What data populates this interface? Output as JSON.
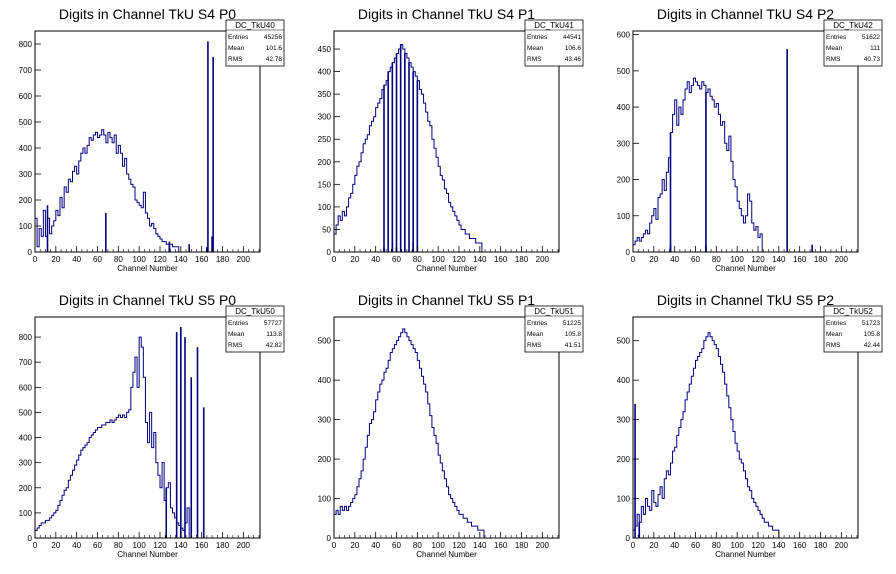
{
  "colors": {
    "histogram": "#000080",
    "frame": "#000000",
    "background": "#ffffff"
  },
  "chart_data": [
    {
      "type": "bar",
      "title": "Digits in Channel TkU S4 P0",
      "xlabel": "Channel Number",
      "ylabel": "",
      "xlim": [
        0,
        216
      ],
      "ylim": [
        0,
        850
      ],
      "xticks": [
        0,
        20,
        40,
        60,
        80,
        100,
        120,
        140,
        160,
        180,
        200
      ],
      "yticks": [
        100,
        200,
        300,
        400,
        500,
        600,
        700,
        800
      ],
      "stats": {
        "name": "DC_TkU40",
        "labels": [
          "Entries",
          "Mean",
          "RMS"
        ],
        "values": [
          "45256",
          "101.6",
          "42.78"
        ]
      },
      "bin_width": 2,
      "values": [
        130,
        20,
        90,
        60,
        160,
        60,
        130,
        70,
        100,
        120,
        160,
        140,
        210,
        170,
        250,
        230,
        280,
        270,
        310,
        330,
        300,
        350,
        380,
        400,
        380,
        410,
        440,
        430,
        450,
        460,
        440,
        450,
        470,
        450,
        420,
        460,
        440,
        420,
        450,
        380,
        410,
        380,
        330,
        360,
        300,
        280,
        260,
        250,
        200,
        190,
        180,
        170,
        230,
        150,
        130,
        100,
        110,
        90,
        70,
        60,
        50,
        40,
        40,
        30,
        30,
        30,
        20,
        20,
        20
      ],
      "spikes": [
        [
          12,
          180
        ],
        [
          68,
          150
        ],
        [
          129,
          40
        ],
        [
          148,
          30
        ],
        [
          166,
          810
        ],
        [
          171,
          750
        ],
        [
          165,
          20
        ],
        [
          170,
          60
        ]
      ]
    },
    {
      "type": "bar",
      "title": "Digits in Channel TkU S4 P1",
      "xlabel": "Channel Number",
      "ylabel": "",
      "xlim": [
        0,
        216
      ],
      "ylim": [
        0,
        490
      ],
      "xticks": [
        0,
        20,
        40,
        60,
        80,
        100,
        120,
        140,
        160,
        180,
        200
      ],
      "yticks": [
        50,
        100,
        150,
        200,
        250,
        300,
        350,
        400,
        450
      ],
      "stats": {
        "name": "DC_TkU41",
        "labels": [
          "Entries",
          "Mean",
          "RMS"
        ],
        "values": [
          "44541",
          "106.6",
          "43.46"
        ]
      },
      "bin_width": 2,
      "values": [
        40,
        60,
        80,
        70,
        90,
        80,
        100,
        120,
        130,
        150,
        170,
        190,
        200,
        220,
        240,
        250,
        260,
        280,
        290,
        300,
        320,
        330,
        340,
        360,
        370,
        380,
        400,
        410,
        420,
        430,
        440,
        450,
        460,
        450,
        440,
        430,
        420,
        410,
        400,
        390,
        380,
        360,
        350,
        330,
        310,
        290,
        280,
        250,
        230,
        210,
        190,
        170,
        160,
        140,
        130,
        110,
        100,
        90,
        80,
        70,
        60,
        50,
        50,
        40,
        40,
        30,
        30,
        30,
        20,
        20,
        20
      ],
      "spikes": [
        [
          48,
          10
        ],
        [
          52,
          0
        ],
        [
          56,
          20
        ],
        [
          60,
          10
        ],
        [
          64,
          0
        ],
        [
          68,
          10
        ],
        [
          72,
          0
        ],
        [
          76,
          20
        ],
        [
          80,
          10
        ]
      ]
    },
    {
      "type": "bar",
      "title": "Digits in Channel TkU S4 P2",
      "xlabel": "Channel Number",
      "ylabel": "",
      "xlim": [
        0,
        216
      ],
      "ylim": [
        0,
        610
      ],
      "xticks": [
        0,
        20,
        40,
        60,
        80,
        100,
        120,
        140,
        160,
        180,
        200
      ],
      "yticks": [
        100,
        200,
        300,
        400,
        500,
        600
      ],
      "stats": {
        "name": "DC_TkU42",
        "labels": [
          "Entries",
          "Mean",
          "RMS"
        ],
        "values": [
          "51622",
          "111",
          "40.73"
        ]
      },
      "bin_width": 2,
      "values": [
        20,
        30,
        40,
        30,
        40,
        50,
        60,
        50,
        80,
        100,
        120,
        90,
        150,
        160,
        200,
        170,
        220,
        260,
        330,
        380,
        420,
        350,
        400,
        380,
        420,
        450,
        470,
        440,
        460,
        480,
        470,
        460,
        450,
        470,
        460,
        440,
        450,
        430,
        420,
        400,
        410,
        380,
        350,
        360,
        300,
        280,
        320,
        250,
        200,
        180,
        140,
        120,
        100,
        80,
        100,
        160,
        140,
        80,
        60,
        70,
        40,
        50
      ],
      "spikes": [
        [
          36,
          20
        ],
        [
          70,
          20
        ],
        [
          148,
          560
        ],
        [
          172,
          20
        ],
        [
          178,
          0
        ],
        [
          180,
          0
        ],
        [
          186,
          0
        ]
      ]
    },
    {
      "type": "bar",
      "title": "Digits in Channel TkU S5 P0",
      "xlabel": "Channel Number",
      "ylabel": "",
      "xlim": [
        0,
        216
      ],
      "ylim": [
        0,
        880
      ],
      "xticks": [
        0,
        20,
        40,
        60,
        80,
        100,
        120,
        140,
        160,
        180,
        200
      ],
      "yticks": [
        100,
        200,
        300,
        400,
        500,
        600,
        700,
        800
      ],
      "stats": {
        "name": "DC_TkU50",
        "labels": [
          "Entries",
          "Mean",
          "RMS"
        ],
        "values": [
          "57727",
          "113.8",
          "42.82"
        ]
      },
      "bin_width": 2,
      "values": [
        30,
        40,
        50,
        60,
        60,
        70,
        70,
        80,
        90,
        100,
        110,
        130,
        150,
        170,
        190,
        200,
        230,
        250,
        270,
        290,
        310,
        330,
        350,
        360,
        370,
        380,
        400,
        410,
        420,
        430,
        440,
        440,
        450,
        450,
        460,
        460,
        470,
        460,
        470,
        480,
        490,
        480,
        490,
        480,
        500,
        510,
        600,
        660,
        720,
        600,
        800,
        760,
        640,
        460,
        380,
        500,
        360,
        420,
        300,
        250,
        200,
        300,
        150,
        200,
        220,
        120,
        100,
        80,
        60,
        50,
        40,
        30,
        60,
        120
      ],
      "spikes": [
        [
          126,
          0
        ],
        [
          136,
          820
        ],
        [
          140,
          840
        ],
        [
          144,
          800
        ],
        [
          150,
          640
        ],
        [
          156,
          760
        ],
        [
          162,
          520
        ]
      ]
    },
    {
      "type": "bar",
      "title": "Digits in Channel TkU S5 P1",
      "xlabel": "Channel Number",
      "ylabel": "",
      "xlim": [
        0,
        216
      ],
      "ylim": [
        0,
        560
      ],
      "xticks": [
        0,
        20,
        40,
        60,
        80,
        100,
        120,
        140,
        160,
        180,
        200
      ],
      "yticks": [
        100,
        200,
        300,
        400,
        500
      ],
      "stats": {
        "name": "DC_TkU51",
        "labels": [
          "Entries",
          "Mean",
          "RMS"
        ],
        "values": [
          "51225",
          "105.8",
          "41.51"
        ]
      },
      "bin_width": 2,
      "values": [
        60,
        70,
        60,
        80,
        70,
        80,
        70,
        80,
        90,
        100,
        110,
        130,
        150,
        170,
        200,
        230,
        260,
        290,
        300,
        320,
        350,
        370,
        390,
        400,
        420,
        430,
        450,
        470,
        480,
        490,
        500,
        510,
        520,
        530,
        520,
        510,
        500,
        490,
        480,
        470,
        450,
        430,
        410,
        390,
        370,
        340,
        310,
        280,
        260,
        240,
        210,
        190,
        170,
        150,
        130,
        110,
        100,
        90,
        80,
        70,
        60,
        60,
        50,
        50,
        40,
        40,
        30,
        30,
        30,
        20,
        20,
        20
      ],
      "spikes": []
    },
    {
      "type": "bar",
      "title": "Digits in Channel TkU S5 P2",
      "xlabel": "Channel Number",
      "ylabel": "",
      "xlim": [
        0,
        216
      ],
      "ylim": [
        0,
        560
      ],
      "xticks": [
        0,
        20,
        40,
        60,
        80,
        100,
        120,
        140,
        160,
        180,
        200
      ],
      "yticks": [
        100,
        200,
        300,
        400,
        500
      ],
      "stats": {
        "name": "DC_TkU52",
        "labels": [
          "Entries",
          "Mean",
          "RMS"
        ],
        "values": [
          "51723",
          "105.8",
          "42.44"
        ]
      },
      "bin_width": 2,
      "values": [
        20,
        30,
        60,
        40,
        80,
        60,
        100,
        80,
        70,
        120,
        90,
        80,
        110,
        130,
        100,
        150,
        170,
        160,
        190,
        220,
        230,
        260,
        280,
        300,
        320,
        350,
        370,
        390,
        410,
        430,
        450,
        460,
        470,
        480,
        500,
        510,
        520,
        510,
        500,
        490,
        480,
        460,
        440,
        420,
        390,
        360,
        330,
        300,
        270,
        240,
        220,
        200,
        190,
        170,
        150,
        130,
        120,
        100,
        90,
        80,
        70,
        60,
        50,
        40,
        40,
        30,
        30,
        20,
        20,
        20
      ],
      "spikes": [
        [
          2,
          340
        ],
        [
          6,
          20
        ],
        [
          140,
          0
        ]
      ]
    }
  ]
}
